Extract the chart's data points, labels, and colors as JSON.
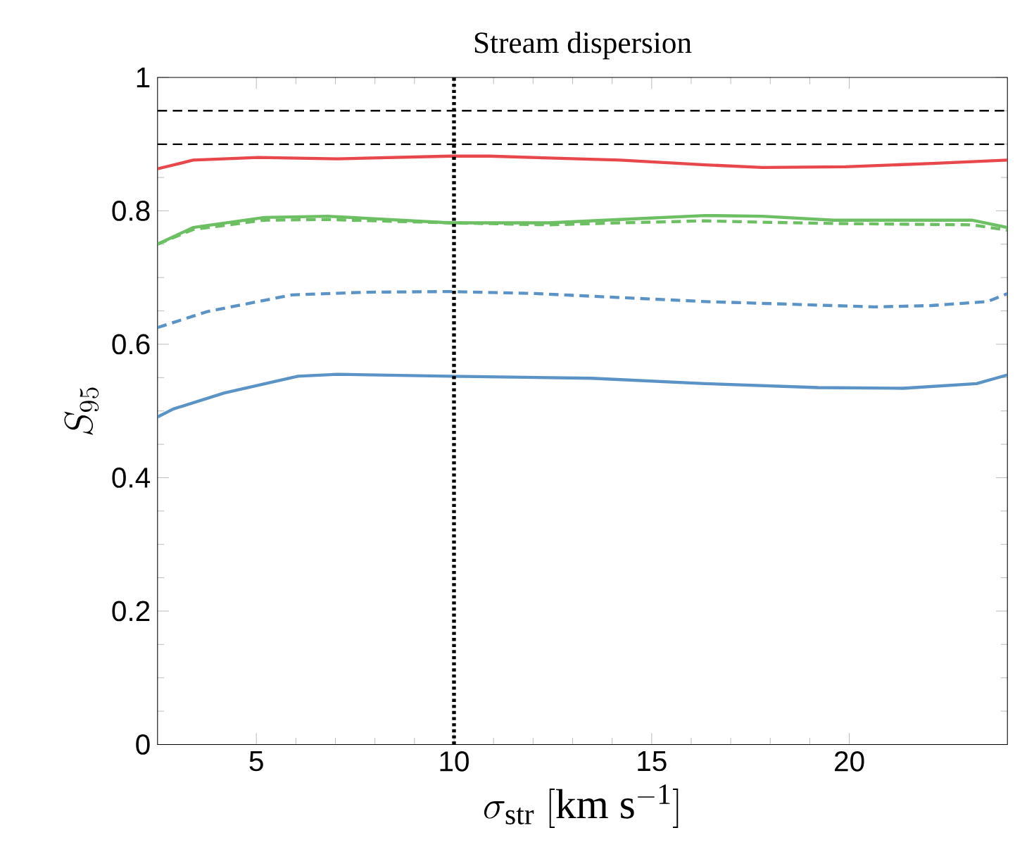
{
  "chart_data": {
    "type": "line",
    "title": "Stream dispersion",
    "xlabel": "\\sigma_{\\mathrm{str}}\\ [\\mathrm{km\\ s^{-1}}]",
    "ylabel": "S_{95}",
    "xlim": [
      2.5,
      24
    ],
    "ylim": [
      0,
      1
    ],
    "xticks": [
      5,
      10,
      15,
      20
    ],
    "yticks": [
      0,
      0.2,
      0.4,
      0.6,
      0.8,
      1
    ],
    "series": [
      {
        "color": "#e8474c",
        "line_style": "solid",
        "x": [
          2.5,
          3.4,
          5.05,
          7.05,
          9.9,
          10.9,
          14.2,
          16.35,
          17.8,
          19.9,
          22.1,
          24
        ],
        "values": [
          0.863,
          0.876,
          0.88,
          0.878,
          0.882,
          0.882,
          0.876,
          0.869,
          0.865,
          0.866,
          0.871,
          0.876
        ]
      },
      {
        "color": "#6cbf62",
        "line_style": "solid",
        "x": [
          2.5,
          3.4,
          5.2,
          6.8,
          9.9,
          12.4,
          14.2,
          16.35,
          17.8,
          19.6,
          23.1,
          24
        ],
        "values": [
          0.75,
          0.775,
          0.79,
          0.792,
          0.782,
          0.782,
          0.787,
          0.793,
          0.792,
          0.786,
          0.786,
          0.775
        ]
      },
      {
        "color": "#6cbf62",
        "line_style": "dashed",
        "x": [
          2.5,
          3.4,
          5.2,
          6.8,
          9.9,
          12.4,
          14.2,
          16.35,
          17.8,
          19.6,
          23.1,
          24
        ],
        "values": [
          0.75,
          0.772,
          0.786,
          0.787,
          0.782,
          0.779,
          0.782,
          0.785,
          0.783,
          0.781,
          0.779,
          0.771
        ]
      },
      {
        "color": "#5b93c7",
        "line_style": "dashed",
        "x": [
          2.5,
          3.76,
          5.9,
          7.76,
          9.9,
          12.07,
          14.2,
          16.35,
          18.5,
          20.64,
          22.07,
          23.5,
          24
        ],
        "values": [
          0.625,
          0.649,
          0.674,
          0.678,
          0.679,
          0.676,
          0.67,
          0.664,
          0.66,
          0.656,
          0.658,
          0.664,
          0.676
        ]
      },
      {
        "color": "#5b93c7",
        "line_style": "solid",
        "x": [
          2.5,
          2.9,
          4.19,
          6.05,
          7.05,
          9.9,
          13.48,
          16.35,
          19.21,
          21.36,
          23.22,
          24
        ],
        "values": [
          0.491,
          0.503,
          0.527,
          0.552,
          0.555,
          0.552,
          0.549,
          0.541,
          0.535,
          0.534,
          0.541,
          0.554
        ]
      }
    ],
    "ref_lines": [
      {
        "axis": "y",
        "value": 0.95,
        "line_style": "dashed",
        "color": "#000000"
      },
      {
        "axis": "y",
        "value": 0.9,
        "line_style": "dashed",
        "color": "#000000"
      },
      {
        "axis": "x",
        "value": 10,
        "line_style": "dotted",
        "color": "#000000"
      }
    ]
  }
}
